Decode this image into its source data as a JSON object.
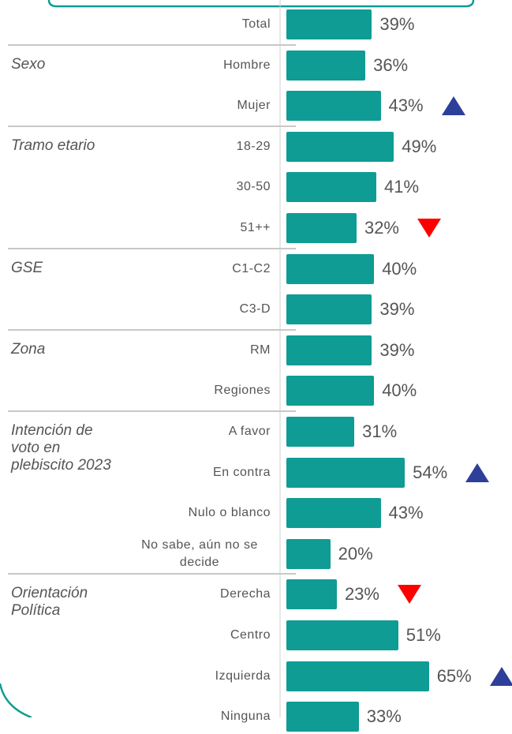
{
  "chart_data": {
    "type": "bar",
    "orientation": "horizontal",
    "color": "#0e9c94",
    "marker_colors": {
      "up": "#2e3f9a",
      "down": "#ff0000"
    },
    "groups": [
      {
        "name": null,
        "categories": [
          "Total"
        ],
        "values": [
          39
        ],
        "value_labels": [
          "39%"
        ],
        "markers": [
          null
        ]
      },
      {
        "name": "Sexo",
        "categories": [
          "Hombre",
          "Mujer"
        ],
        "values": [
          36,
          43
        ],
        "value_labels": [
          "36%",
          "43%"
        ],
        "markers": [
          null,
          "up"
        ]
      },
      {
        "name": "Tramo etario",
        "categories": [
          "18-29",
          "30-50",
          "51++"
        ],
        "values": [
          49,
          41,
          32
        ],
        "value_labels": [
          "49%",
          "41%",
          "32%"
        ],
        "markers": [
          null,
          null,
          "down"
        ]
      },
      {
        "name": "GSE",
        "categories": [
          "C1-C2",
          "C3-D"
        ],
        "values": [
          40,
          39
        ],
        "value_labels": [
          "40%",
          "39%"
        ],
        "markers": [
          null,
          null
        ]
      },
      {
        "name": "Zona",
        "categories": [
          "RM",
          "Regiones"
        ],
        "values": [
          39,
          40
        ],
        "value_labels": [
          "39%",
          "40%"
        ],
        "markers": [
          null,
          null
        ]
      },
      {
        "name": "Intención de voto en plebiscito 2023",
        "categories": [
          "A favor",
          "En contra",
          "Nulo o blanco",
          "No sabe, aún no se decide"
        ],
        "values": [
          31,
          54,
          43,
          20
        ],
        "value_labels": [
          "31%",
          "54%",
          "43%",
          "20%"
        ],
        "markers": [
          null,
          "up",
          null,
          null
        ]
      },
      {
        "name": "Orientación Política",
        "categories": [
          "Derecha",
          "Centro",
          "Izquierda",
          "Ninguna"
        ],
        "values": [
          23,
          51,
          65,
          33
        ],
        "value_labels": [
          "23%",
          "51%",
          "65%",
          "33%"
        ],
        "markers": [
          "down",
          null,
          "up",
          null
        ]
      }
    ]
  }
}
